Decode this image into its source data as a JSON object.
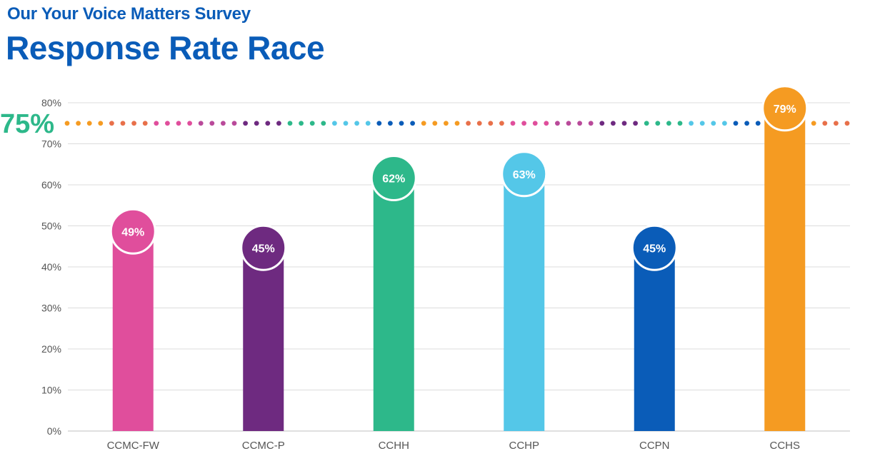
{
  "header": {
    "subtitle": "Our Your Voice Matters Survey",
    "title": "Response Rate Race"
  },
  "chart_data": {
    "type": "bar",
    "categories": [
      "CCMC-FW",
      "CCMC-P",
      "CCHH",
      "CCHP",
      "CCPN",
      "CCHS"
    ],
    "values": [
      49,
      45,
      62,
      63,
      45,
      79
    ],
    "value_labels": [
      "49%",
      "45%",
      "62%",
      "63%",
      "45%",
      "79%"
    ],
    "colors": [
      "#e04e9c",
      "#6e2a80",
      "#2db88a",
      "#54c7e8",
      "#0a5cb8",
      "#f59b22"
    ],
    "y_ticks": [
      "0%",
      "10%",
      "20%",
      "30%",
      "40%",
      "50%",
      "60%",
      "70%",
      "80%"
    ],
    "ylim": [
      0,
      80
    ],
    "grid": true,
    "target": {
      "value": 75,
      "label": "75%",
      "label_color": "#2db88a",
      "dot_colors": [
        "#f59b22",
        "#e8704a",
        "#e04e9c",
        "#b94a9a",
        "#6e2a80",
        "#2db88a",
        "#54c7e8",
        "#0a5cb8"
      ]
    }
  }
}
